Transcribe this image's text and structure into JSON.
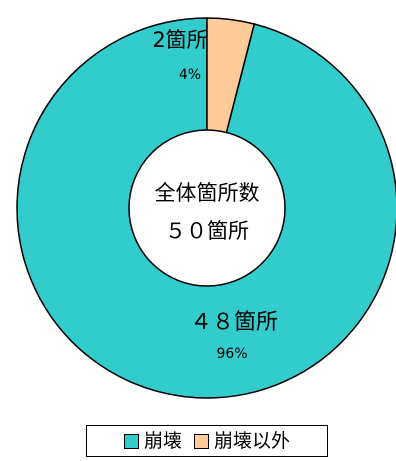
{
  "chart_data": {
    "type": "pie",
    "style": "donut",
    "center_label_line1": "全体箇所数",
    "center_label_line2": "５０箇所",
    "slices": [
      {
        "name": "崩壊",
        "value": 48,
        "count_label": "４８箇所",
        "percent_label": "96%",
        "color": "#33CCCC"
      },
      {
        "name": "崩壊以外",
        "value": 2,
        "count_label": "2箇所",
        "percent_label": "4%",
        "color": "#FFCC99"
      }
    ],
    "legend": {
      "position": "bottom",
      "items": [
        {
          "label": "崩壊",
          "color": "#33CCCC"
        },
        {
          "label": "崩壊以外",
          "color": "#FFCC99"
        }
      ]
    }
  }
}
